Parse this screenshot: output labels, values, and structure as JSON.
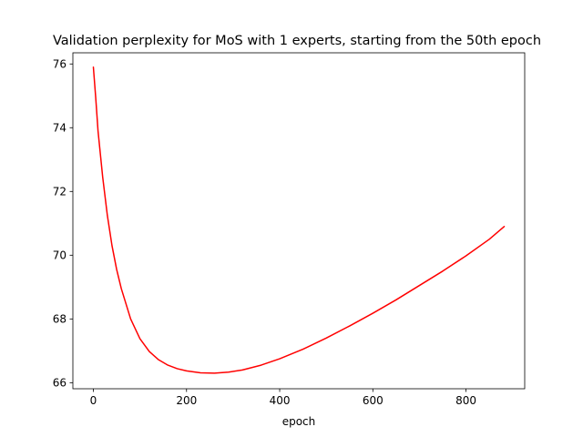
{
  "chart_data": {
    "type": "line",
    "title": "Validation perplexity for MoS with 1 experts, starting from the 50th epoch",
    "xlabel": "epoch",
    "ylabel": "",
    "xlim": [
      -44,
      926
    ],
    "ylim": [
      65.81,
      76.35
    ],
    "xticks": [
      0,
      200,
      400,
      600,
      800
    ],
    "yticks": [
      66,
      68,
      70,
      72,
      74,
      76
    ],
    "grid": false,
    "legend": "none",
    "series": [
      {
        "name": "validation perplexity",
        "color": "#ff0000",
        "x": [
          0,
          5,
          10,
          20,
          30,
          40,
          50,
          60,
          80,
          100,
          120,
          140,
          160,
          180,
          200,
          230,
          260,
          290,
          320,
          360,
          400,
          450,
          500,
          550,
          600,
          650,
          700,
          750,
          800,
          850,
          882
        ],
        "y": [
          75.9,
          74.95,
          73.9,
          72.45,
          71.25,
          70.3,
          69.55,
          68.95,
          68.0,
          67.38,
          66.98,
          66.72,
          66.55,
          66.44,
          66.37,
          66.31,
          66.3,
          66.33,
          66.4,
          66.55,
          66.75,
          67.05,
          67.4,
          67.78,
          68.18,
          68.6,
          69.05,
          69.5,
          69.98,
          70.5,
          70.9
        ]
      }
    ]
  }
}
